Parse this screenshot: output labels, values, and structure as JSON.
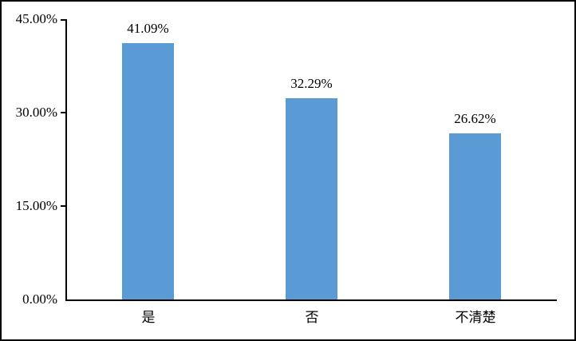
{
  "chart_data": {
    "type": "bar",
    "title": "",
    "xlabel": "",
    "ylabel": "",
    "categories": [
      "是",
      "否",
      "不清楚"
    ],
    "values": [
      41.09,
      32.29,
      26.62
    ],
    "data_labels": [
      "41.09%",
      "32.29%",
      "26.62%"
    ],
    "ylim": [
      0,
      45
    ],
    "yticks": [
      {
        "value": 45,
        "label": "45.00%"
      },
      {
        "value": 30,
        "label": "30.00%"
      },
      {
        "value": 15,
        "label": "15.00%"
      },
      {
        "value": 0,
        "label": "0.00%"
      }
    ],
    "grid": false,
    "legend_position": "none",
    "bar_color": "#5B9BD5",
    "axis_color": "#000000",
    "text_color": "#000000",
    "frame_border_color": "#000000"
  }
}
